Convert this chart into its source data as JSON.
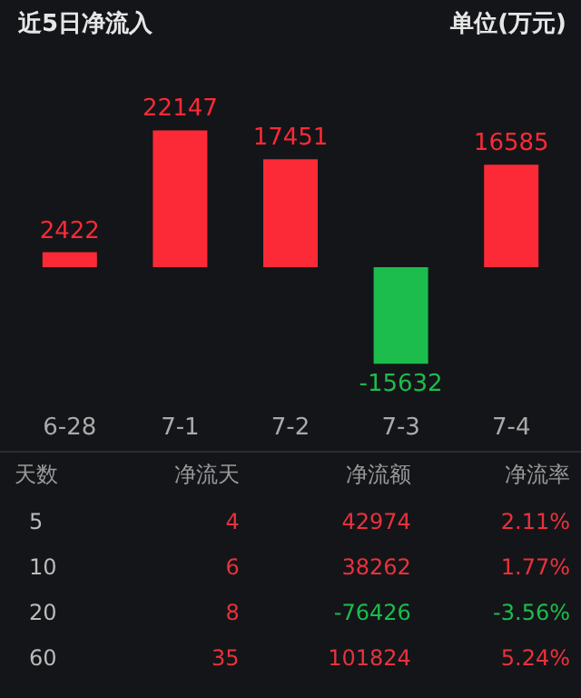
{
  "chart_data": [
    {
      "type": "bar",
      "title": "近5日净流入",
      "ylabel": "单位(万元)",
      "categories": [
        "6-28",
        "7-1",
        "7-2",
        "7-3",
        "7-4"
      ],
      "values": [
        2422,
        22147,
        17451,
        -15632,
        16585
      ],
      "colors": [
        "#fc2a36",
        "#fc2a36",
        "#fc2a36",
        "#1cbd4c",
        "#fc2a36"
      ],
      "data_labels": true
    },
    {
      "type": "other",
      "categories": [
        "天数",
        "净流天",
        "净流额",
        "净流率"
      ],
      "cell_labels": [
        [
          "5",
          "4",
          "42974",
          "2.11%"
        ],
        [
          "10",
          "6",
          "38262",
          "1.77%"
        ],
        [
          "20",
          "8",
          "-76426",
          "-3.56%"
        ],
        [
          "60",
          "35",
          "101824",
          "5.24%"
        ]
      ]
    }
  ]
}
